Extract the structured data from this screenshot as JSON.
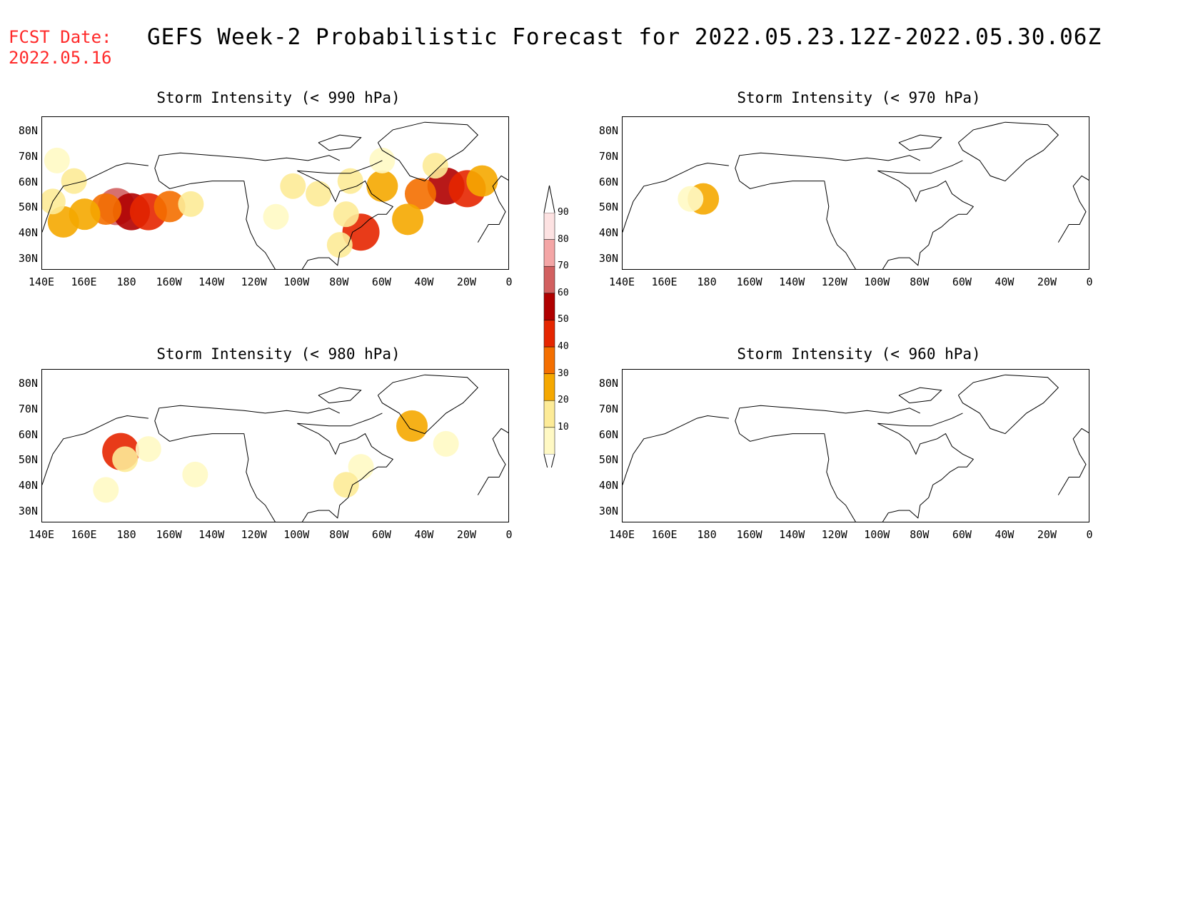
{
  "fcst_label": "FCST Date:",
  "fcst_date": "2022.05.16",
  "title": "GEFS Week-2 Probabilistic Forecast for 2022.05.23.12Z-2022.05.30.06Z",
  "panels": [
    {
      "id": "p990",
      "title": "Storm Intensity (< 990 hPa)"
    },
    {
      "id": "p970",
      "title": "Storm Intensity (< 970 hPa)"
    },
    {
      "id": "p980",
      "title": "Storm Intensity (< 980 hPa)"
    },
    {
      "id": "p960",
      "title": "Storm Intensity (< 960 hPa)"
    }
  ],
  "lat_ticks": [
    "80N",
    "70N",
    "60N",
    "50N",
    "40N",
    "30N"
  ],
  "lon_ticks": [
    "140E",
    "160E",
    "180",
    "160W",
    "140W",
    "120W",
    "100W",
    "80W",
    "60W",
    "40W",
    "20W",
    "0"
  ],
  "colorbar": {
    "levels": [
      10,
      20,
      30,
      40,
      50,
      60,
      70,
      80,
      90
    ],
    "colors": [
      "#fff9c4",
      "#fdeb97",
      "#f5a800",
      "#f46f00",
      "#e52600",
      "#b00000",
      "#d26060",
      "#f4a6a6",
      "#fde2e2"
    ]
  },
  "map_data": {
    "lon_range": [
      140,
      360
    ],
    "lat_range": [
      25,
      85
    ],
    "fields": {
      "p990": [
        {
          "lon": 175,
          "lat": 50,
          "v": 70
        },
        {
          "lon": 182,
          "lat": 48,
          "v": 60
        },
        {
          "lon": 190,
          "lat": 48,
          "v": 50
        },
        {
          "lon": 170,
          "lat": 49,
          "v": 40
        },
        {
          "lon": 200,
          "lat": 50,
          "v": 40
        },
        {
          "lon": 160,
          "lat": 47,
          "v": 30
        },
        {
          "lon": 150,
          "lat": 44,
          "v": 30
        },
        {
          "lon": 145,
          "lat": 52,
          "v": 20
        },
        {
          "lon": 210,
          "lat": 51,
          "v": 20
        },
        {
          "lon": 155,
          "lat": 60,
          "v": 20
        },
        {
          "lon": 147,
          "lat": 68,
          "v": 10
        },
        {
          "lon": 330,
          "lat": 58,
          "v": 60
        },
        {
          "lon": 340,
          "lat": 57,
          "v": 50
        },
        {
          "lon": 318,
          "lat": 55,
          "v": 40
        },
        {
          "lon": 300,
          "lat": 58,
          "v": 30
        },
        {
          "lon": 285,
          "lat": 60,
          "v": 20
        },
        {
          "lon": 270,
          "lat": 55,
          "v": 20
        },
        {
          "lon": 258,
          "lat": 58,
          "v": 20
        },
        {
          "lon": 347,
          "lat": 60,
          "v": 30
        },
        {
          "lon": 312,
          "lat": 45,
          "v": 30
        },
        {
          "lon": 290,
          "lat": 40,
          "v": 50
        },
        {
          "lon": 283,
          "lat": 47,
          "v": 20
        },
        {
          "lon": 280,
          "lat": 35,
          "v": 20
        },
        {
          "lon": 250,
          "lat": 46,
          "v": 10
        },
        {
          "lon": 325,
          "lat": 66,
          "v": 20
        },
        {
          "lon": 300,
          "lat": 68,
          "v": 10
        }
      ],
      "p970": [
        {
          "lon": 178,
          "lat": 53,
          "v": 30
        },
        {
          "lon": 172,
          "lat": 53,
          "v": 10
        }
      ],
      "p980": [
        {
          "lon": 177,
          "lat": 53,
          "v": 50
        },
        {
          "lon": 179,
          "lat": 50,
          "v": 20
        },
        {
          "lon": 190,
          "lat": 54,
          "v": 10
        },
        {
          "lon": 314,
          "lat": 63,
          "v": 30
        },
        {
          "lon": 330,
          "lat": 56,
          "v": 10
        },
        {
          "lon": 290,
          "lat": 47,
          "v": 10
        },
        {
          "lon": 283,
          "lat": 40,
          "v": 20
        },
        {
          "lon": 170,
          "lat": 38,
          "v": 10
        },
        {
          "lon": 212,
          "lat": 44,
          "v": 10
        }
      ],
      "p960": []
    }
  }
}
